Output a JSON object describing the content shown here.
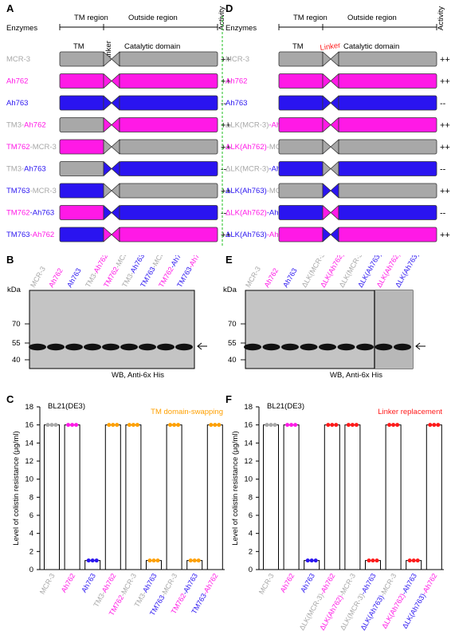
{
  "colors": {
    "grey": "#a8a8a8",
    "pink": "#ff19e6",
    "blue": "#2a14f0",
    "orange": "#ffa000",
    "red": "#ff1a1a",
    "green": "#1fbf1f",
    "blot_bg": "#c8c8c8"
  },
  "panel_A": {
    "letter": "A",
    "header_tm": "TM region",
    "header_outside": "Outside region",
    "header_activity": "Activity",
    "label_enzymes": "Enzymes",
    "label_tm": "TM",
    "label_linker": "Linker",
    "label_catalytic": "Catalytic domain",
    "rows": [
      {
        "parts": [
          {
            "t": "MCR-3",
            "c": "grey"
          }
        ],
        "tm": "grey",
        "lk": "grey",
        "cat": "grey",
        "activity": "++"
      },
      {
        "parts": [
          {
            "t": "Ah762",
            "c": "pink"
          }
        ],
        "tm": "pink",
        "lk": "pink",
        "cat": "pink",
        "activity": "++"
      },
      {
        "parts": [
          {
            "t": "Ah763",
            "c": "blue"
          }
        ],
        "tm": "blue",
        "lk": "blue",
        "cat": "blue",
        "activity": "--"
      },
      {
        "parts": [
          {
            "t": "TM3-",
            "c": "grey"
          },
          {
            "t": "Ah762",
            "c": "pink"
          }
        ],
        "tm": "grey",
        "lk": "pink",
        "cat": "pink",
        "activity": "++"
      },
      {
        "parts": [
          {
            "t": "TM762",
            "c": "pink"
          },
          {
            "t": "-MCR-3",
            "c": "grey"
          }
        ],
        "tm": "pink",
        "lk": "grey",
        "cat": "grey",
        "activity": "++"
      },
      {
        "parts": [
          {
            "t": "TM3-",
            "c": "grey"
          },
          {
            "t": "Ah763",
            "c": "blue"
          }
        ],
        "tm": "grey",
        "lk": "blue",
        "cat": "blue",
        "activity": "--"
      },
      {
        "parts": [
          {
            "t": "TM763",
            "c": "blue"
          },
          {
            "t": "-MCR-3",
            "c": "grey"
          }
        ],
        "tm": "blue",
        "lk": "grey",
        "cat": "grey",
        "activity": "++"
      },
      {
        "parts": [
          {
            "t": "TM762",
            "c": "pink"
          },
          {
            "t": "-Ah763",
            "c": "blue"
          }
        ],
        "tm": "pink",
        "lk": "blue",
        "cat": "blue",
        "activity": "--"
      },
      {
        "parts": [
          {
            "t": "TM763",
            "c": "blue"
          },
          {
            "t": "-Ah762",
            "c": "pink"
          }
        ],
        "tm": "blue",
        "lk": "pink",
        "cat": "pink",
        "activity": "++"
      }
    ]
  },
  "panel_D": {
    "letter": "D",
    "header_tm": "TM region",
    "header_outside": "Outside region",
    "header_activity": "Activity",
    "label_enzymes": "Enzymes",
    "label_tm": "TM",
    "label_linker": "Linker",
    "label_catalytic": "Catalytic domain",
    "rows": [
      {
        "parts": [
          {
            "t": "MCR-3",
            "c": "grey"
          }
        ],
        "tm": "grey",
        "lk": "grey",
        "cat": "grey",
        "activity": "++"
      },
      {
        "parts": [
          {
            "t": "Ah762",
            "c": "pink"
          }
        ],
        "tm": "pink",
        "lk": "pink",
        "cat": "pink",
        "activity": "++"
      },
      {
        "parts": [
          {
            "t": "Ah763",
            "c": "blue"
          }
        ],
        "tm": "blue",
        "lk": "blue",
        "cat": "blue",
        "activity": "--"
      },
      {
        "parts": [
          {
            "t": "ΔLK(MCR-3)",
            "c": "grey"
          },
          {
            "t": "-Ah762",
            "c": "pink"
          }
        ],
        "tm": "pink",
        "lk": "pink",
        "cat": "pink",
        "activity": "++"
      },
      {
        "parts": [
          {
            "t": "ΔLK(Ah762)",
            "c": "pink"
          },
          {
            "t": "-MCR-3",
            "c": "grey"
          }
        ],
        "tm": "grey",
        "lk": "grey",
        "cat": "grey",
        "activity": "++"
      },
      {
        "parts": [
          {
            "t": "ΔLK(MCR-3)",
            "c": "grey"
          },
          {
            "t": "-Ah763",
            "c": "blue"
          }
        ],
        "tm": "blue",
        "lk": "grey",
        "cat": "blue",
        "activity": "--"
      },
      {
        "parts": [
          {
            "t": "ΔLK(Ah763)",
            "c": "blue"
          },
          {
            "t": "-MCR-3",
            "c": "grey"
          }
        ],
        "tm": "grey",
        "lk": "blue",
        "cat": "grey",
        "activity": "++"
      },
      {
        "parts": [
          {
            "t": "ΔLK(Ah762)",
            "c": "pink"
          },
          {
            "t": "-Ah763",
            "c": "blue"
          }
        ],
        "tm": "blue",
        "lk": "pink",
        "cat": "blue",
        "activity": "--"
      },
      {
        "parts": [
          {
            "t": "ΔLK(Ah763)",
            "c": "blue"
          },
          {
            "t": "-Ah762",
            "c": "pink"
          }
        ],
        "tm": "pink",
        "lk": "blue",
        "cat": "pink",
        "activity": "++"
      }
    ]
  },
  "panel_B": {
    "letter": "B",
    "kda": "kDa",
    "markers": [
      "70",
      "55",
      "40"
    ],
    "caption": "WB, Anti-6x His",
    "lanes": [
      [
        {
          "t": "MCR-3",
          "c": "grey"
        }
      ],
      [
        {
          "t": "Ah762",
          "c": "pink"
        }
      ],
      [
        {
          "t": "Ah763",
          "c": "blue"
        }
      ],
      [
        {
          "t": "TM3-",
          "c": "grey"
        },
        {
          "t": "Ah762",
          "c": "pink"
        }
      ],
      [
        {
          "t": "TM762",
          "c": "pink"
        },
        {
          "t": "-MCR-3",
          "c": "grey"
        }
      ],
      [
        {
          "t": "TM3-",
          "c": "grey"
        },
        {
          "t": "Ah763",
          "c": "blue"
        }
      ],
      [
        {
          "t": "TM763",
          "c": "blue"
        },
        {
          "t": "-MCR-3",
          "c": "grey"
        }
      ],
      [
        {
          "t": "TM762",
          "c": "pink"
        },
        {
          "t": "-Ah763",
          "c": "blue"
        }
      ],
      [
        {
          "t": "TM763",
          "c": "blue"
        },
        {
          "t": "-Ah762",
          "c": "pink"
        }
      ]
    ]
  },
  "panel_E": {
    "letter": "E",
    "kda": "kDa",
    "markers": [
      "70",
      "55",
      "40"
    ],
    "caption": "WB, Anti-6x His",
    "lanes": [
      [
        {
          "t": "MCR-3",
          "c": "grey"
        }
      ],
      [
        {
          "t": "Ah762",
          "c": "pink"
        }
      ],
      [
        {
          "t": "Ah763",
          "c": "blue"
        }
      ],
      [
        {
          "t": "ΔLK(MCR-3)",
          "c": "grey"
        },
        {
          "t": "-Ah762",
          "c": "pink"
        }
      ],
      [
        {
          "t": "ΔLK(Ah762)",
          "c": "pink"
        },
        {
          "t": "-MCR-3",
          "c": "grey"
        }
      ],
      [
        {
          "t": "ΔLK(MCR-3)",
          "c": "grey"
        },
        {
          "t": "-Ah763",
          "c": "blue"
        }
      ],
      [
        {
          "t": "ΔLK(Ah763)",
          "c": "blue"
        },
        {
          "t": "-MCR-3",
          "c": "grey"
        }
      ],
      [
        {
          "t": "ΔLK(Ah762)",
          "c": "pink"
        },
        {
          "t": "-Ah763",
          "c": "blue"
        }
      ],
      [
        {
          "t": "ΔLK(Ah763)",
          "c": "blue"
        },
        {
          "t": "-Ah762",
          "c": "pink"
        }
      ]
    ]
  },
  "chart_data": [
    {
      "panel": "C",
      "type": "bar",
      "strain": "BL21(DE3)",
      "annotation": "TM domain-swapping",
      "ylabel": "Level of colistin resistance (μg/ml)",
      "ylim": [
        0,
        18
      ],
      "yticks": [
        0,
        2,
        4,
        6,
        8,
        10,
        12,
        14,
        16,
        18
      ],
      "categories": [
        "MCR-3",
        "Ah762",
        "Ah763",
        "TM3-Ah762",
        "TM762-MCR-3",
        "TM3-Ah763",
        "TM763-MCR-3",
        "TM762-Ah763",
        "TM763-Ah762"
      ],
      "values": [
        16,
        16,
        1,
        16,
        16,
        1,
        16,
        1,
        16
      ],
      "point_colors": [
        "grey",
        "pink",
        "blue",
        "orange",
        "orange",
        "orange",
        "orange",
        "orange",
        "orange"
      ],
      "label_parts": [
        [
          {
            "t": "MCR-3",
            "c": "grey"
          }
        ],
        [
          {
            "t": "Ah762",
            "c": "pink"
          }
        ],
        [
          {
            "t": "Ah763",
            "c": "blue"
          }
        ],
        [
          {
            "t": "TM3-",
            "c": "grey"
          },
          {
            "t": "Ah762",
            "c": "pink"
          }
        ],
        [
          {
            "t": "TM762",
            "c": "pink"
          },
          {
            "t": "-MCR-3",
            "c": "grey"
          }
        ],
        [
          {
            "t": "TM3-",
            "c": "grey"
          },
          {
            "t": "Ah763",
            "c": "blue"
          }
        ],
        [
          {
            "t": "TM763",
            "c": "blue"
          },
          {
            "t": "-MCR-3",
            "c": "grey"
          }
        ],
        [
          {
            "t": "TM762",
            "c": "pink"
          },
          {
            "t": "-Ah763",
            "c": "blue"
          }
        ],
        [
          {
            "t": "TM763",
            "c": "blue"
          },
          {
            "t": "-Ah762",
            "c": "pink"
          }
        ]
      ]
    },
    {
      "panel": "F",
      "type": "bar",
      "strain": "BL21(DE3)",
      "annotation": "Linker replacement",
      "ylabel": "Level of colistin resistance (μg/ml)",
      "ylim": [
        0,
        18
      ],
      "yticks": [
        0,
        2,
        4,
        6,
        8,
        10,
        12,
        14,
        16,
        18
      ],
      "categories": [
        "MCR-3",
        "Ah762",
        "Ah763",
        "ΔLK(MCR-3)-Ah762",
        "ΔLK(Ah762)-MCR-3",
        "ΔLK(MCR-3)-Ah763",
        "ΔLK(Ah763)-MCR-3",
        "ΔLK(Ah762)-Ah763",
        "ΔLK(Ah763)-Ah762"
      ],
      "values": [
        16,
        16,
        1,
        16,
        16,
        1,
        16,
        1,
        16
      ],
      "point_colors": [
        "grey",
        "pink",
        "blue",
        "red",
        "red",
        "red",
        "red",
        "red",
        "red"
      ],
      "label_parts": [
        [
          {
            "t": "MCR-3",
            "c": "grey"
          }
        ],
        [
          {
            "t": "Ah762",
            "c": "pink"
          }
        ],
        [
          {
            "t": "Ah763",
            "c": "blue"
          }
        ],
        [
          {
            "t": "ΔLK(MCR-3)",
            "c": "grey"
          },
          {
            "t": "-Ah762",
            "c": "pink"
          }
        ],
        [
          {
            "t": "ΔLK(Ah762)",
            "c": "pink"
          },
          {
            "t": "-MCR-3",
            "c": "grey"
          }
        ],
        [
          {
            "t": "ΔLK(MCR-3)",
            "c": "grey"
          },
          {
            "t": "-Ah763",
            "c": "blue"
          }
        ],
        [
          {
            "t": "ΔLK(Ah763)",
            "c": "blue"
          },
          {
            "t": "-MCR-3",
            "c": "grey"
          }
        ],
        [
          {
            "t": "ΔLK(Ah762)",
            "c": "pink"
          },
          {
            "t": "-Ah763",
            "c": "blue"
          }
        ],
        [
          {
            "t": "ΔLK(Ah763)",
            "c": "blue"
          },
          {
            "t": "-Ah762",
            "c": "pink"
          }
        ]
      ]
    }
  ]
}
